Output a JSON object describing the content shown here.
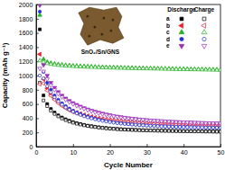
{
  "chart_data": {
    "type": "scatter",
    "x_label": "Cycle Number",
    "y_label": "Capacity (mAh g⁻¹)",
    "annotations": [
      "SnO₂/Sn/GNS"
    ],
    "legend": "upper right",
    "legend_columns": [
      "Discharge",
      "Charge"
    ],
    "xlim": [
      0,
      50
    ],
    "xticks": [
      0,
      10,
      20,
      30,
      40,
      50
    ],
    "ylim": [
      0,
      2000
    ],
    "yticks": [
      0,
      200,
      400,
      600,
      800,
      1000,
      1200,
      1400,
      1600,
      1800,
      2000
    ],
    "x": [
      1,
      2,
      3,
      4,
      5,
      6,
      7,
      8,
      9,
      10,
      11,
      12,
      13,
      14,
      15,
      16,
      17,
      18,
      19,
      20,
      21,
      22,
      23,
      24,
      25,
      26,
      27,
      28,
      29,
      30,
      31,
      32,
      33,
      34,
      35,
      36,
      37,
      38,
      39,
      40,
      41,
      42,
      43,
      44,
      45,
      46,
      47,
      48,
      49,
      50
    ],
    "series": [
      {
        "name": "a",
        "color": "#000000",
        "marker": "square",
        "values": [
          1650,
          720,
          600,
          530,
          480,
          440,
          410,
          385,
          365,
          345,
          330,
          318,
          306,
          296,
          288,
          280,
          273,
          267,
          262,
          257,
          253,
          249,
          246,
          243,
          240,
          238,
          236,
          234,
          232,
          230,
          229,
          228,
          226,
          225,
          224,
          223,
          222,
          221,
          220,
          219,
          218,
          217,
          216,
          216,
          215,
          214,
          214,
          213,
          212,
          212
        ]
      },
      {
        "name": "a",
        "color": "#000000",
        "marker": "square-open",
        "values": [
          900,
          650,
          570,
          505,
          460,
          425,
          396,
          373,
          353,
          336,
          322,
          310,
          299,
          290,
          282,
          275,
          268,
          262,
          257,
          253,
          249,
          245,
          242,
          239,
          237,
          235,
          233,
          231,
          229,
          228,
          226,
          225,
          224,
          223,
          222,
          221,
          220,
          219,
          218,
          217,
          216,
          215,
          214,
          214,
          213,
          212,
          212,
          211,
          210,
          210
        ]
      },
      {
        "name": "b",
        "color": "#e8202a",
        "marker": "triangle-left",
        "values": [
          1300,
          950,
          820,
          740,
          680,
          630,
          590,
          555,
          525,
          500,
          480,
          462,
          446,
          432,
          420,
          409,
          399,
          390,
          382,
          375,
          369,
          363,
          358,
          353,
          349,
          345,
          341,
          338,
          335,
          332,
          329,
          327,
          325,
          323,
          321,
          319,
          317,
          316,
          314,
          313,
          311,
          310,
          309,
          308,
          307,
          306,
          305,
          304,
          303,
          302
        ]
      },
      {
        "name": "b",
        "color": "#e8202a",
        "marker": "triangle-left-open",
        "values": [
          880,
          890,
          790,
          715,
          660,
          612,
          574,
          541,
          512,
          488,
          469,
          452,
          437,
          423,
          412,
          401,
          392,
          383,
          376,
          369,
          363,
          358,
          353,
          348,
          344,
          340,
          337,
          334,
          331,
          328,
          326,
          324,
          322,
          320,
          318,
          316,
          315,
          313,
          312,
          310,
          309,
          308,
          307,
          306,
          305,
          304,
          303,
          302,
          301,
          300
        ]
      },
      {
        "name": "c",
        "color": "#22b022",
        "marker": "triangle-up",
        "values": [
          1850,
          1230,
          1190,
          1175,
          1165,
          1158,
          1152,
          1147,
          1143,
          1139,
          1136,
          1133,
          1130,
          1128,
          1126,
          1124,
          1122,
          1120,
          1118,
          1116,
          1115,
          1113,
          1112,
          1110,
          1109,
          1108,
          1106,
          1105,
          1104,
          1103,
          1102,
          1101,
          1100,
          1099,
          1098,
          1097,
          1096,
          1095,
          1094,
          1093,
          1092,
          1091,
          1090,
          1089,
          1088,
          1087,
          1086,
          1085,
          1084,
          1083
        ]
      },
      {
        "name": "c",
        "color": "#22b022",
        "marker": "triangle-up-open",
        "values": [
          1210,
          1190,
          1170,
          1160,
          1152,
          1146,
          1141,
          1137,
          1133,
          1130,
          1127,
          1124,
          1122,
          1120,
          1118,
          1116,
          1114,
          1112,
          1111,
          1109,
          1108,
          1106,
          1105,
          1104,
          1102,
          1101,
          1100,
          1099,
          1098,
          1097,
          1096,
          1095,
          1094,
          1093,
          1092,
          1091,
          1090,
          1089,
          1088,
          1087,
          1086,
          1085,
          1084,
          1083,
          1082,
          1081,
          1080,
          1079,
          1078,
          1077
        ]
      },
      {
        "name": "d",
        "color": "#1f2fd8",
        "marker": "circle",
        "values": [
          1900,
          1050,
          900,
          800,
          720,
          660,
          610,
          570,
          535,
          505,
          480,
          458,
          438,
          421,
          406,
          392,
          380,
          369,
          359,
          350,
          342,
          335,
          329,
          323,
          318,
          313,
          309,
          305,
          301,
          298,
          295,
          292,
          290,
          287,
          285,
          283,
          281,
          279,
          278,
          276,
          275,
          273,
          272,
          271,
          270,
          269,
          268,
          267,
          266,
          265
        ]
      },
      {
        "name": "d",
        "color": "#1f2fd8",
        "marker": "circle-open",
        "values": [
          1000,
          960,
          850,
          765,
          695,
          638,
          592,
          553,
          520,
          492,
          468,
          447,
          428,
          412,
          398,
          385,
          373,
          363,
          354,
          346,
          338,
          331,
          325,
          320,
          315,
          311,
          307,
          303,
          300,
          296,
          293,
          291,
          288,
          286,
          284,
          282,
          280,
          278,
          277,
          275,
          274,
          272,
          271,
          270,
          269,
          268,
          267,
          266,
          265,
          264
        ]
      },
      {
        "name": "e",
        "color": "#9b2fb8",
        "marker": "triangle-down",
        "values": [
          1990,
          1150,
          1000,
          900,
          830,
          770,
          720,
          680,
          645,
          615,
          590,
          566,
          545,
          526,
          509,
          494,
          480,
          467,
          455,
          444,
          434,
          425,
          417,
          409,
          402,
          396,
          390,
          385,
          380,
          375,
          371,
          367,
          363,
          360,
          357,
          354,
          351,
          349,
          346,
          344,
          342,
          340,
          338,
          336,
          335,
          333,
          332,
          330,
          329,
          328
        ]
      },
      {
        "name": "e",
        "color": "#9b2fb8",
        "marker": "triangle-down-open",
        "values": [
          1100,
          1060,
          950,
          865,
          800,
          745,
          698,
          660,
          627,
          599,
          574,
          552,
          532,
          514,
          498,
          484,
          470,
          458,
          447,
          437,
          428,
          420,
          412,
          405,
          399,
          393,
          387,
          382,
          378,
          373,
          369,
          365,
          362,
          359,
          356,
          353,
          350,
          348,
          345,
          343,
          341,
          339,
          337,
          335,
          334,
          332,
          331,
          329,
          328,
          327
        ]
      }
    ]
  }
}
